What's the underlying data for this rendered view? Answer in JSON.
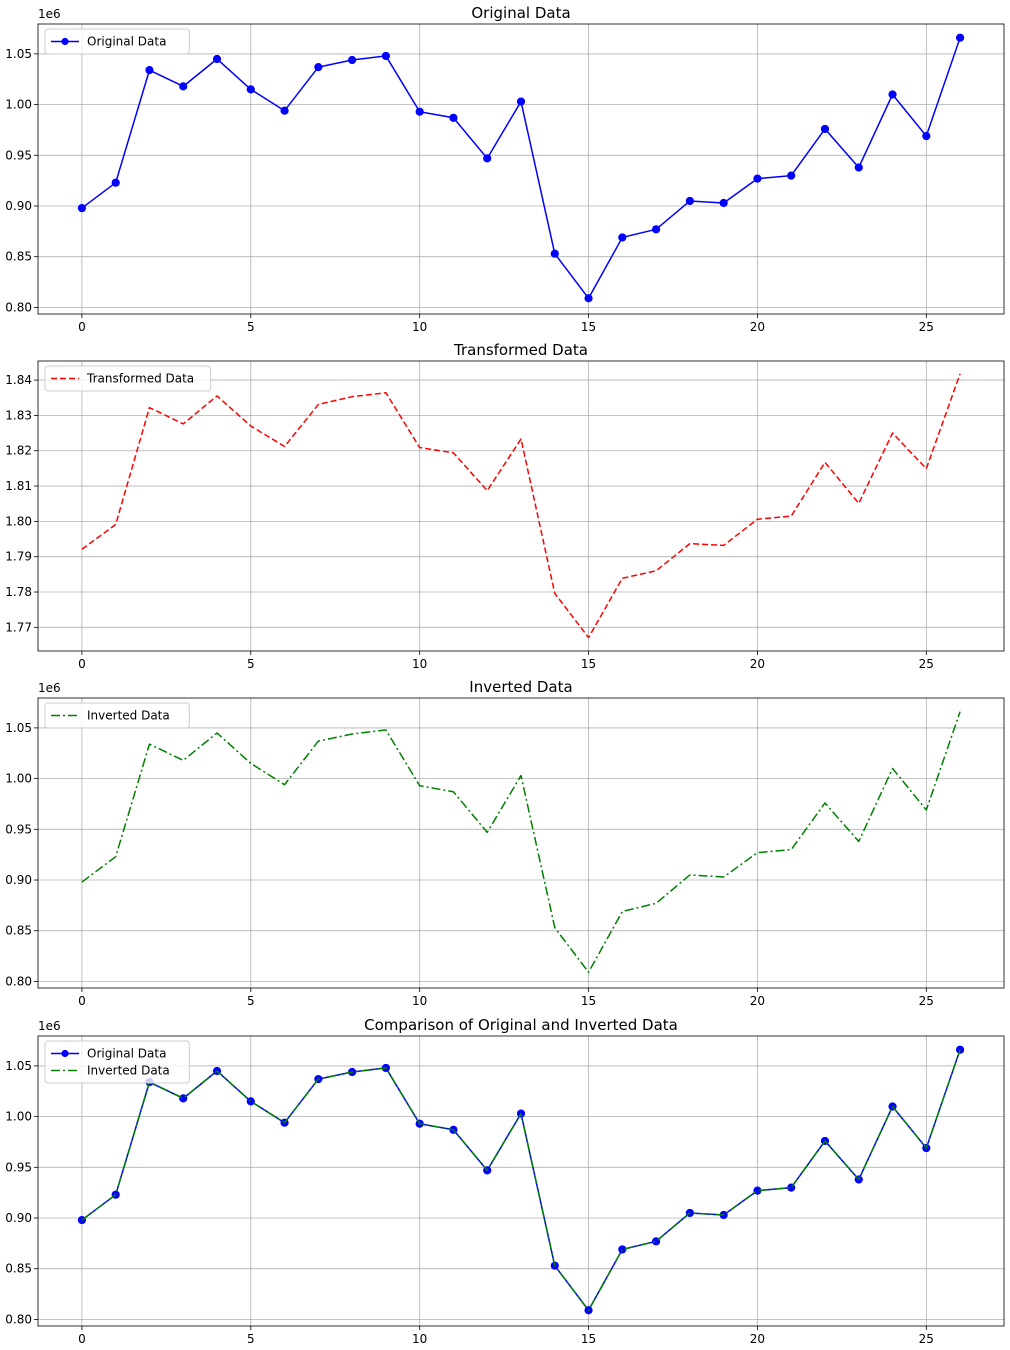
{
  "chart_data": [
    {
      "type": "line",
      "title": "Original Data",
      "xlabel": "",
      "ylabel": "",
      "offset_text": "1e6",
      "xlim": [
        -1.3,
        27.3
      ],
      "ylim": [
        0.7935,
        1.0795
      ],
      "xticks": [
        0,
        5,
        10,
        15,
        20,
        25
      ],
      "xtick_labels": [
        "0",
        "5",
        "10",
        "15",
        "20",
        "25"
      ],
      "yticks": [
        0.8,
        0.85,
        0.9,
        0.95,
        1.0,
        1.05
      ],
      "ytick_labels": [
        "0.80",
        "0.85",
        "0.90",
        "0.95",
        "1.00",
        "1.05"
      ],
      "grid": true,
      "legend_position": "upper-left",
      "series": [
        {
          "name": "Original Data",
          "color": "#0000ff",
          "linestyle": "solid",
          "marker": "circle",
          "x": [
            0,
            1,
            2,
            3,
            4,
            5,
            6,
            7,
            8,
            9,
            10,
            11,
            12,
            13,
            14,
            15,
            16,
            17,
            18,
            19,
            20,
            21,
            22,
            23,
            24,
            25,
            26
          ],
          "values": [
            0.898,
            0.923,
            1.034,
            1.018,
            1.045,
            1.015,
            0.994,
            1.037,
            1.044,
            1.048,
            0.993,
            0.987,
            0.947,
            1.003,
            0.853,
            0.809,
            0.869,
            0.877,
            0.905,
            0.903,
            0.927,
            0.93,
            0.976,
            0.938,
            1.01,
            0.969,
            1.066
          ]
        }
      ]
    },
    {
      "type": "line",
      "title": "Transformed Data",
      "xlabel": "",
      "ylabel": "",
      "offset_text": "",
      "xlim": [
        -1.3,
        27.3
      ],
      "ylim": [
        1.7633,
        1.8454
      ],
      "xticks": [
        0,
        5,
        10,
        15,
        20,
        25
      ],
      "xtick_labels": [
        "0",
        "5",
        "10",
        "15",
        "20",
        "25"
      ],
      "yticks": [
        1.77,
        1.78,
        1.79,
        1.8,
        1.81,
        1.82,
        1.83,
        1.84
      ],
      "ytick_labels": [
        "1.77",
        "1.78",
        "1.79",
        "1.80",
        "1.81",
        "1.82",
        "1.83",
        "1.84"
      ],
      "grid": true,
      "legend_position": "upper-left",
      "series": [
        {
          "name": "Transformed Data",
          "color": "#ff0000",
          "linestyle": "dashed",
          "marker": "none",
          "x": [
            0,
            1,
            2,
            3,
            4,
            5,
            6,
            7,
            8,
            9,
            10,
            11,
            12,
            13,
            14,
            15,
            16,
            17,
            18,
            19,
            20,
            21,
            22,
            23,
            24,
            25,
            26
          ],
          "values": [
            1.7921,
            1.7991,
            1.8322,
            1.8276,
            1.8355,
            1.827,
            1.8212,
            1.8331,
            1.8353,
            1.8364,
            1.8209,
            1.8194,
            1.8087,
            1.8233,
            1.7796,
            1.7671,
            1.7839,
            1.786,
            1.7937,
            1.7932,
            1.8006,
            1.8015,
            1.8167,
            1.8051,
            1.825,
            1.8149,
            1.8418
          ]
        }
      ]
    },
    {
      "type": "line",
      "title": "Inverted Data",
      "xlabel": "",
      "ylabel": "",
      "offset_text": "1e6",
      "xlim": [
        -1.3,
        27.3
      ],
      "ylim": [
        0.7935,
        1.0795
      ],
      "xticks": [
        0,
        5,
        10,
        15,
        20,
        25
      ],
      "xtick_labels": [
        "0",
        "5",
        "10",
        "15",
        "20",
        "25"
      ],
      "yticks": [
        0.8,
        0.85,
        0.9,
        0.95,
        1.0,
        1.05
      ],
      "ytick_labels": [
        "0.80",
        "0.85",
        "0.90",
        "0.95",
        "1.00",
        "1.05"
      ],
      "grid": true,
      "legend_position": "upper-left",
      "series": [
        {
          "name": "Inverted Data",
          "color": "#008000",
          "linestyle": "dashdot",
          "marker": "none",
          "x": [
            0,
            1,
            2,
            3,
            4,
            5,
            6,
            7,
            8,
            9,
            10,
            11,
            12,
            13,
            14,
            15,
            16,
            17,
            18,
            19,
            20,
            21,
            22,
            23,
            24,
            25,
            26
          ],
          "values": [
            0.898,
            0.923,
            1.034,
            1.018,
            1.045,
            1.015,
            0.994,
            1.037,
            1.044,
            1.048,
            0.993,
            0.987,
            0.947,
            1.003,
            0.853,
            0.809,
            0.869,
            0.877,
            0.905,
            0.903,
            0.927,
            0.93,
            0.976,
            0.938,
            1.01,
            0.969,
            1.066
          ]
        }
      ]
    },
    {
      "type": "line",
      "title": "Comparison of Original and Inverted Data",
      "xlabel": "",
      "ylabel": "",
      "offset_text": "1e6",
      "xlim": [
        -1.3,
        27.3
      ],
      "ylim": [
        0.7935,
        1.0795
      ],
      "xticks": [
        0,
        5,
        10,
        15,
        20,
        25
      ],
      "xtick_labels": [
        "0",
        "5",
        "10",
        "15",
        "20",
        "25"
      ],
      "yticks": [
        0.8,
        0.85,
        0.9,
        0.95,
        1.0,
        1.05
      ],
      "ytick_labels": [
        "0.80",
        "0.85",
        "0.90",
        "0.95",
        "1.00",
        "1.05"
      ],
      "grid": true,
      "legend_position": "upper-left",
      "series": [
        {
          "name": "Original Data",
          "color": "#0000ff",
          "linestyle": "solid",
          "marker": "circle",
          "x": [
            0,
            1,
            2,
            3,
            4,
            5,
            6,
            7,
            8,
            9,
            10,
            11,
            12,
            13,
            14,
            15,
            16,
            17,
            18,
            19,
            20,
            21,
            22,
            23,
            24,
            25,
            26
          ],
          "values": [
            0.898,
            0.923,
            1.034,
            1.018,
            1.045,
            1.015,
            0.994,
            1.037,
            1.044,
            1.048,
            0.993,
            0.987,
            0.947,
            1.003,
            0.853,
            0.809,
            0.869,
            0.877,
            0.905,
            0.903,
            0.927,
            0.93,
            0.976,
            0.938,
            1.01,
            0.969,
            1.066
          ]
        },
        {
          "name": "Inverted Data",
          "color": "#008000",
          "linestyle": "dashdot",
          "marker": "none",
          "x": [
            0,
            1,
            2,
            3,
            4,
            5,
            6,
            7,
            8,
            9,
            10,
            11,
            12,
            13,
            14,
            15,
            16,
            17,
            18,
            19,
            20,
            21,
            22,
            23,
            24,
            25,
            26
          ],
          "values": [
            0.898,
            0.923,
            1.034,
            1.018,
            1.045,
            1.015,
            0.994,
            1.037,
            1.044,
            1.048,
            0.993,
            0.987,
            0.947,
            1.003,
            0.853,
            0.809,
            0.869,
            0.877,
            0.905,
            0.903,
            0.927,
            0.93,
            0.976,
            0.938,
            1.01,
            0.969,
            1.066
          ]
        }
      ]
    }
  ]
}
